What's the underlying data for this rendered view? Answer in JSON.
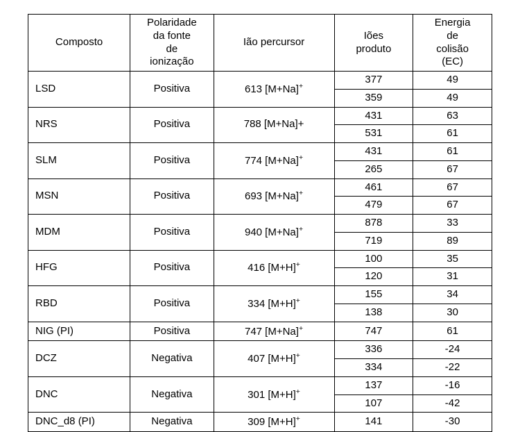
{
  "table": {
    "columns": {
      "compound": "Composto",
      "polarity_l1": "Polaridade",
      "polarity_l2": "da fonte",
      "polarity_l3": "de",
      "polarity_l4": "ionização",
      "precursor": "Ião percursor",
      "product_l1": "Iões",
      "product_l2": "produto",
      "energy_l1": "Energia",
      "energy_l2": "de",
      "energy_l3": "colisão",
      "energy_l4": "(EC)"
    },
    "rows": [
      {
        "compound": "LSD",
        "polarity": "Positiva",
        "precursor_prefix": "613 [M+Na]",
        "precursor_sup": "+",
        "precursor_plain": "",
        "products": [
          "377",
          "359"
        ],
        "energies": [
          "49",
          "49"
        ]
      },
      {
        "compound": "NRS",
        "polarity": "Positiva",
        "precursor_prefix": "",
        "precursor_sup": "",
        "precursor_plain": "788 [M+Na]+",
        "products": [
          "431",
          "531"
        ],
        "energies": [
          "63",
          "61"
        ]
      },
      {
        "compound": "SLM",
        "polarity": "Positiva",
        "precursor_prefix": "774 [M+Na]",
        "precursor_sup": "+",
        "precursor_plain": "",
        "products": [
          "431",
          "265"
        ],
        "energies": [
          "61",
          "67"
        ]
      },
      {
        "compound": "MSN",
        "polarity": "Positiva",
        "precursor_prefix": "693 [M+Na]",
        "precursor_sup": "+",
        "precursor_plain": "",
        "products": [
          "461",
          "479"
        ],
        "energies": [
          "67",
          "67"
        ]
      },
      {
        "compound": "MDM",
        "polarity": "Positiva",
        "precursor_prefix": "940 [M+Na]",
        "precursor_sup": "+",
        "precursor_plain": "",
        "products": [
          "878",
          "719"
        ],
        "energies": [
          "33",
          "89"
        ]
      },
      {
        "compound": "HFG",
        "polarity": "Positiva",
        "precursor_prefix": "416 [M+H]",
        "precursor_sup": "+",
        "precursor_plain": "",
        "products": [
          "100",
          "120"
        ],
        "energies": [
          "35",
          "31"
        ]
      },
      {
        "compound": "RBD",
        "polarity": "Positiva",
        "precursor_prefix": "334 [M+H]",
        "precursor_sup": "+",
        "precursor_plain": "",
        "products": [
          "155",
          "138"
        ],
        "energies": [
          "34",
          "30"
        ]
      },
      {
        "compound": "NIG (PI)",
        "polarity": "Positiva",
        "precursor_prefix": "747 [M+Na]",
        "precursor_sup": "+",
        "precursor_plain": "",
        "products": [
          "747"
        ],
        "energies": [
          "61"
        ]
      },
      {
        "compound": "DCZ",
        "polarity": "Negativa",
        "precursor_prefix": "407 [M+H]",
        "precursor_sup": "+",
        "precursor_plain": "",
        "products": [
          "336",
          "334"
        ],
        "energies": [
          "-24",
          "-22"
        ]
      },
      {
        "compound": "DNC",
        "polarity": "Negativa",
        "precursor_prefix": "301 [M+H]",
        "precursor_sup": "+",
        "precursor_plain": "",
        "products": [
          "137",
          "107"
        ],
        "energies": [
          "-16",
          "-42"
        ]
      },
      {
        "compound": "DNC_d8 (PI)",
        "polarity": "Negativa",
        "precursor_prefix": "309 [M+H]",
        "precursor_sup": "+",
        "precursor_plain": "",
        "products": [
          "141"
        ],
        "energies": [
          "-30"
        ]
      }
    ],
    "style": {
      "border_color": "#000000",
      "background_color": "#ffffff",
      "font_family": "Arial",
      "font_size_pt": 11,
      "text_color": "#000000",
      "column_widths_pct": [
        22,
        18,
        26,
        17,
        17
      ],
      "header_align": "center",
      "compound_align": "left",
      "data_align": "center"
    }
  }
}
